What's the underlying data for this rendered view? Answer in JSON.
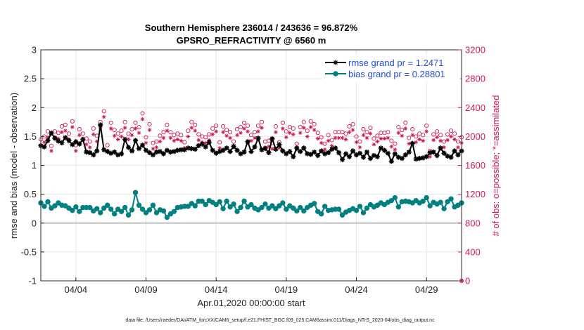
{
  "chart_data": {
    "type": "line",
    "title": "Southern Hemisphere 236014 / 243636 = 96.872%",
    "subtitle": "GPSRO_REFRACTIVITY @ 6560 m",
    "xlabel": "Apr.01,2020 00:00:00 start",
    "ylabel": "rmse and bias (model - observation)",
    "ylabel_right": "# of obs: o=possible; *=assimilated",
    "footer": "data file: /Users/raeder/DAI/ATM_forcXX/CAM6_setup/f.e21.FHIST_BGC.f09_025.CAM6assim.011/Diags_NTrS_2020-04/obs_diag_output.nc",
    "xlim": [
      1.0,
      31.0
    ],
    "ylim": [
      -1,
      3
    ],
    "ylim_right": [
      0,
      3200
    ],
    "x_ticks": [
      3.5,
      8.5,
      13.5,
      18.5,
      23.5,
      28.5
    ],
    "x_tick_labels": [
      "04/04",
      "04/09",
      "04/14",
      "04/19",
      "04/24",
      "04/29"
    ],
    "y_tick_labels": [
      "-1",
      "-0.5",
      "0",
      "0.5",
      "1",
      "1.5",
      "2",
      "2.5",
      "3"
    ],
    "y_ticks": [
      -1,
      -0.5,
      0,
      0.5,
      1,
      1.5,
      2,
      2.5,
      3
    ],
    "y_right_tick_labels": [
      "0",
      "400",
      "800",
      "1200",
      "1600",
      "2000",
      "2400",
      "2800",
      "3200"
    ],
    "y_right_ticks": [
      0,
      400,
      800,
      1200,
      1600,
      2000,
      2400,
      2800,
      3200
    ],
    "grid": true,
    "legend_position": "top-right",
    "colors": {
      "rmse": "#000000",
      "bias": "#008080",
      "obs": "#d4145a",
      "zero_line": "#9a9a9a",
      "grid": "#e6e6e6"
    },
    "x": [
      1.0,
      1.25,
      1.5,
      1.75,
      2.0,
      2.25,
      2.5,
      2.75,
      3.0,
      3.25,
      3.5,
      3.75,
      4.0,
      4.25,
      4.5,
      4.75,
      5.0,
      5.25,
      5.5,
      5.75,
      6.0,
      6.25,
      6.5,
      6.75,
      7.0,
      7.25,
      7.5,
      7.75,
      8.0,
      8.25,
      8.5,
      8.75,
      9.0,
      9.25,
      9.5,
      9.75,
      10.0,
      10.25,
      10.5,
      10.75,
      11.0,
      11.25,
      11.5,
      11.75,
      12.0,
      12.25,
      12.5,
      12.75,
      13.0,
      13.25,
      13.5,
      13.75,
      14.0,
      14.25,
      14.5,
      14.75,
      15.0,
      15.25,
      15.5,
      15.75,
      16.0,
      16.25,
      16.5,
      16.75,
      17.0,
      17.25,
      17.5,
      17.75,
      18.0,
      18.25,
      18.5,
      18.75,
      19.0,
      19.25,
      19.5,
      19.75,
      20.0,
      20.25,
      20.5,
      20.75,
      21.0,
      21.25,
      21.5,
      21.75,
      22.0,
      22.25,
      22.5,
      22.75,
      23.0,
      23.25,
      23.5,
      23.75,
      24.0,
      24.25,
      24.5,
      24.75,
      25.0,
      25.25,
      25.5,
      25.75,
      26.0,
      26.25,
      26.5,
      26.75,
      27.0,
      27.25,
      27.5,
      27.75,
      28.0,
      28.25,
      28.5,
      28.75,
      29.0,
      29.25,
      29.5,
      29.75,
      30.0,
      30.25,
      30.5,
      30.75,
      31.0
    ],
    "series": [
      {
        "name": "rmse grand pr = 1.2471",
        "marker": "star",
        "values": [
          1.34,
          1.32,
          1.43,
          1.56,
          1.47,
          1.42,
          1.39,
          1.48,
          1.43,
          1.36,
          1.41,
          1.37,
          1.45,
          1.23,
          1.22,
          1.18,
          1.25,
          1.7,
          1.27,
          1.24,
          1.21,
          1.23,
          1.18,
          1.2,
          1.45,
          1.31,
          1.25,
          1.43,
          1.29,
          1.35,
          1.26,
          1.22,
          1.18,
          1.23,
          1.24,
          1.2,
          1.26,
          1.23,
          1.24,
          1.26,
          1.27,
          1.27,
          1.3,
          1.29,
          1.28,
          1.34,
          1.37,
          1.32,
          1.4,
          1.26,
          1.21,
          1.24,
          1.26,
          1.3,
          1.24,
          1.33,
          1.26,
          1.2,
          1.23,
          1.41,
          1.24,
          1.32,
          1.47,
          1.27,
          1.29,
          1.22,
          1.46,
          1.28,
          1.36,
          1.25,
          1.2,
          1.24,
          1.15,
          1.3,
          1.24,
          1.3,
          1.2,
          1.19,
          1.23,
          1.17,
          1.25,
          1.2,
          1.22,
          1.28,
          1.3,
          1.22,
          1.1,
          1.2,
          1.15,
          1.25,
          1.18,
          1.21,
          1.14,
          1.23,
          1.12,
          1.17,
          1.15,
          1.3,
          1.26,
          1.21,
          1.07,
          1.2,
          1.14,
          1.12,
          1.18,
          1.23,
          1.38,
          1.11,
          1.12,
          1.13,
          1.15,
          1.22,
          1.23,
          1.17,
          1.3,
          1.21,
          1.16,
          1.14,
          1.25,
          1.18,
          1.25
        ]
      },
      {
        "name": "bias grand pr = 0.28801",
        "marker": "circle",
        "values": [
          0.35,
          0.29,
          0.37,
          0.26,
          0.3,
          0.35,
          0.31,
          0.3,
          0.26,
          0.22,
          0.28,
          0.2,
          0.27,
          0.27,
          0.27,
          0.21,
          0.25,
          0.18,
          0.26,
          0.31,
          0.24,
          0.16,
          0.24,
          0.2,
          0.27,
          0.14,
          0.23,
          0.53,
          0.31,
          0.24,
          0.18,
          0.23,
          0.31,
          0.18,
          0.23,
          0.21,
          0.1,
          0.16,
          0.2,
          0.27,
          0.28,
          0.29,
          0.29,
          0.34,
          0.3,
          0.38,
          0.38,
          0.32,
          0.39,
          0.36,
          0.32,
          0.37,
          0.25,
          0.38,
          0.28,
          0.33,
          0.2,
          0.27,
          0.38,
          0.28,
          0.32,
          0.26,
          0.23,
          0.27,
          0.33,
          0.26,
          0.3,
          0.25,
          0.3,
          0.35,
          0.24,
          0.3,
          0.26,
          0.21,
          0.27,
          0.21,
          0.27,
          0.31,
          0.34,
          0.2,
          0.16,
          0.29,
          0.22,
          0.23,
          0.24,
          0.24,
          0.14,
          0.19,
          0.22,
          0.25,
          0.22,
          0.29,
          0.18,
          0.26,
          0.32,
          0.28,
          0.31,
          0.35,
          0.32,
          0.36,
          0.39,
          0.44,
          0.28,
          0.37,
          0.38,
          0.37,
          0.35,
          0.39,
          0.35,
          0.38,
          0.44,
          0.3,
          0.36,
          0.33,
          0.36,
          0.25,
          0.37,
          0.42,
          0.28,
          0.31,
          0.35
        ]
      }
    ],
    "obs_possible": [
      1960,
      2000,
      2070,
      1870,
      2070,
      2050,
      2140,
      2160,
      2040,
      2210,
      1880,
      2100,
      2040,
      1970,
      1930,
      2110,
      2010,
      2200,
      2350,
      1880,
      2190,
      2090,
      2040,
      2080,
      2200,
      2040,
      2100,
      2190,
      2130,
      2320,
      1990,
      2170,
      1910,
      1930,
      2010,
      2060,
      2160,
      2060,
      2020,
      2040,
      2020,
      1920,
      2080,
      2200,
      2160,
      2030,
      2000,
      1990,
      2030,
      2110,
      2150,
      1920,
      2140,
      2090,
      2060,
      1930,
      2100,
      2130,
      2190,
      2150,
      2020,
      2060,
      2150,
      2200,
      1930,
      1940,
      1910,
      2140,
      1920,
      2190,
      2070,
      2130,
      2110,
      1900,
      2130,
      2200,
      2080,
      2210,
      2170,
      2050,
      1990,
      1900,
      2020,
      1950,
      2060,
      2060,
      2060,
      2040,
      2140,
      2170,
      2000,
      1930,
      2100,
      2060,
      2120,
      1970,
      2010,
      2050,
      2050,
      2060,
      1940,
      1900,
      2130,
      2090,
      2190,
      1980,
      2100,
      2000,
      2040,
      2020,
      2150,
      1800,
      2030,
      2070,
      2020,
      1930,
      2030,
      2080,
      2040,
      1930,
      1990
    ],
    "obs_assimilated": [
      1880,
      1920,
      1990,
      1800,
      1990,
      1970,
      2060,
      2080,
      1960,
      2130,
      1800,
      2020,
      1960,
      1890,
      1850,
      2030,
      1930,
      2120,
      2270,
      1800,
      2110,
      2010,
      1960,
      2000,
      2120,
      1960,
      2020,
      2110,
      2050,
      2240,
      1910,
      2090,
      1830,
      1850,
      1930,
      1980,
      2080,
      1980,
      1940,
      1960,
      1940,
      1840,
      2000,
      2120,
      2080,
      1950,
      1920,
      1910,
      1950,
      2030,
      2070,
      1840,
      2060,
      2010,
      1980,
      1850,
      2020,
      2050,
      2110,
      2070,
      1940,
      1980,
      2070,
      2120,
      1850,
      1860,
      1830,
      2060,
      1840,
      2110,
      1990,
      2050,
      2030,
      1820,
      2050,
      2120,
      2000,
      2130,
      2090,
      1970,
      1910,
      1820,
      1940,
      1870,
      1980,
      1980,
      1980,
      1960,
      2060,
      2090,
      1920,
      1850,
      2020,
      1980,
      2040,
      1890,
      1930,
      1970,
      1970,
      1980,
      1860,
      1820,
      2050,
      2010,
      2110,
      1900,
      2020,
      1920,
      1960,
      1940,
      2070,
      1720,
      1950,
      1990,
      1940,
      1850,
      1950,
      2000,
      1960,
      1850,
      1910
    ]
  }
}
